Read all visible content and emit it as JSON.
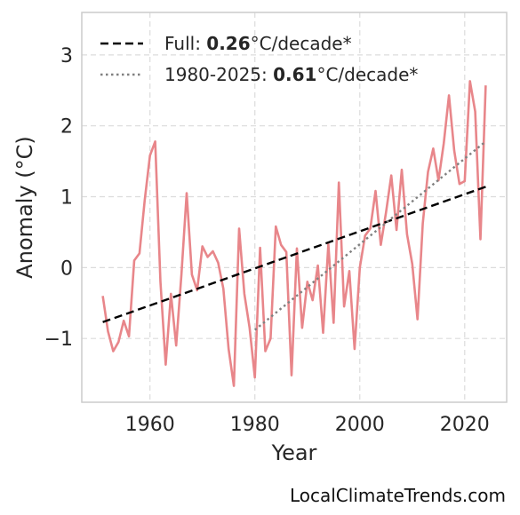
{
  "chart_data": {
    "type": "line",
    "xlabel": "Year",
    "ylabel": "Anomaly (°C)",
    "xlim": [
      1947,
      2028
    ],
    "ylim": [
      -1.9,
      3.6
    ],
    "xticks": [
      1960,
      1980,
      2000,
      2020
    ],
    "yticks": [
      -1,
      0,
      1,
      2,
      3
    ],
    "ytick_labels": [
      "−1",
      "0",
      "1",
      "2",
      "3"
    ],
    "grid": true,
    "legend_position": "top-left",
    "series": [
      {
        "color": "#e8868a",
        "style": "solid",
        "x": [
          1951,
          1952,
          1953,
          1954,
          1955,
          1956,
          1957,
          1958,
          1959,
          1960,
          1961,
          1962,
          1963,
          1964,
          1965,
          1966,
          1967,
          1968,
          1969,
          1970,
          1971,
          1972,
          1973,
          1974,
          1975,
          1976,
          1977,
          1978,
          1979,
          1980,
          1981,
          1982,
          1983,
          1984,
          1985,
          1986,
          1987,
          1988,
          1989,
          1990,
          1991,
          1992,
          1993,
          1994,
          1995,
          1996,
          1997,
          1998,
          1999,
          2000,
          2001,
          2002,
          2003,
          2004,
          2005,
          2006,
          2007,
          2008,
          2009,
          2010,
          2011,
          2012,
          2013,
          2014,
          2015,
          2016,
          2017,
          2018,
          2019,
          2020,
          2021,
          2022,
          2023,
          2024
        ],
        "y": [
          -0.4,
          -0.9,
          -1.18,
          -1.05,
          -0.75,
          -0.97,
          0.1,
          0.2,
          0.95,
          1.58,
          1.78,
          -0.2,
          -1.37,
          -0.37,
          -1.1,
          -0.1,
          1.05,
          -0.1,
          -0.32,
          0.3,
          0.15,
          0.23,
          0.07,
          -0.3,
          -1.15,
          -1.67,
          0.55,
          -0.37,
          -0.85,
          -1.55,
          0.28,
          -1.18,
          -1.0,
          0.58,
          0.32,
          0.22,
          -1.52,
          0.27,
          -0.85,
          -0.2,
          -0.46,
          0.03,
          -0.92,
          0.33,
          -0.78,
          1.2,
          -0.55,
          -0.05,
          -1.15,
          0.0,
          0.45,
          0.55,
          1.08,
          0.32,
          0.78,
          1.3,
          0.53,
          1.38,
          0.47,
          0.05,
          -0.73,
          0.62,
          1.35,
          1.68,
          1.23,
          1.75,
          2.43,
          1.65,
          1.18,
          1.22,
          2.63,
          2.2,
          0.4,
          2.57
        ]
      },
      {
        "name": "Full",
        "color": "#000000",
        "style": "dashed",
        "x": [
          1951,
          2024
        ],
        "y": [
          -0.77,
          1.14
        ]
      },
      {
        "name": "1980-2025",
        "color": "#808080",
        "style": "dotted",
        "x": [
          1980,
          2024
        ],
        "y": [
          -0.88,
          1.78
        ]
      }
    ],
    "legend": [
      {
        "prefix": "Full: ",
        "value": "0.26",
        "suffix": "°C/decade*"
      },
      {
        "prefix": "1980-2025: ",
        "value": "0.61",
        "suffix": "°C/decade*"
      }
    ]
  },
  "source": "LocalClimateTrends.com"
}
